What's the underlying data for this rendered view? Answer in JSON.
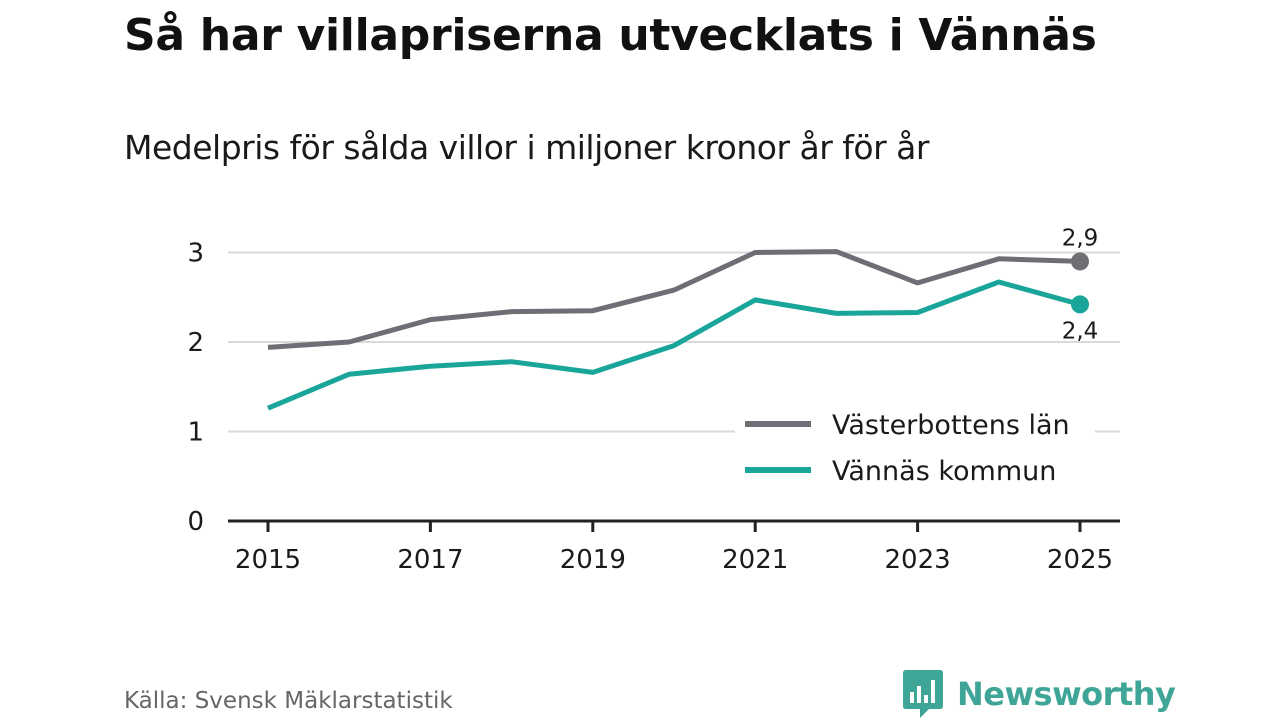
{
  "title": "Så har villapriserna utvecklats i Vännäs",
  "subtitle": "Medelpris för sålda villor i miljoner kronor år för år",
  "source": "Källa: Svensk Mäklarstatistik",
  "brand": {
    "name": "Newsworthy",
    "color": "#3fa596",
    "icon": "newsworthy-chart-icon"
  },
  "chart_data": {
    "type": "line",
    "title": "Så har villapriserna utvecklats i Vännäs",
    "subtitle": "Medelpris för sålda villor i miljoner kronor år för år",
    "xlabel": "",
    "ylabel": "",
    "x": [
      2015,
      2016,
      2017,
      2018,
      2019,
      2020,
      2021,
      2022,
      2023,
      2024,
      2025
    ],
    "x_ticks": [
      "2015",
      "2017",
      "2019",
      "2021",
      "2023",
      "2025"
    ],
    "y_ticks": [
      "0",
      "1",
      "2",
      "3"
    ],
    "ylim": [
      0,
      3.3
    ],
    "grid": true,
    "legend_position": "bottom-right",
    "series": [
      {
        "name": "Västerbottens län",
        "color": "#6f6e75",
        "values": [
          1.94,
          2.0,
          2.25,
          2.34,
          2.35,
          2.58,
          3.0,
          3.01,
          2.66,
          2.93,
          2.9
        ],
        "end_label": "2,9",
        "end_label_position": "above"
      },
      {
        "name": "Vännäs kommun",
        "color": "#1aa59a",
        "values": [
          1.26,
          1.64,
          1.73,
          1.78,
          1.66,
          1.96,
          2.47,
          2.32,
          2.33,
          2.67,
          2.42
        ],
        "end_label": "2,4",
        "end_label_position": "below"
      }
    ]
  }
}
